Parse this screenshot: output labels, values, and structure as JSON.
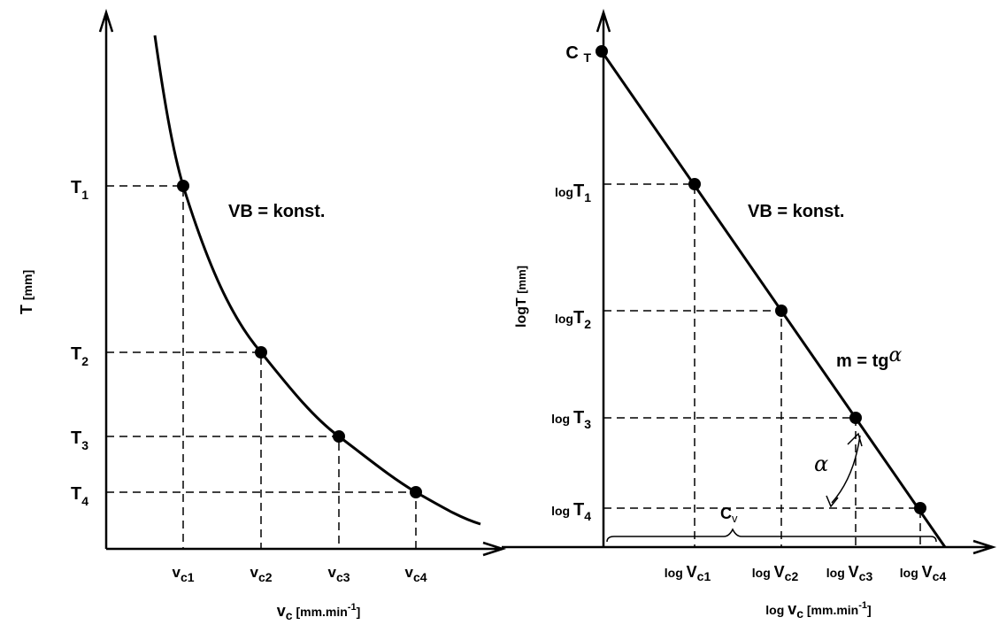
{
  "left": {
    "y_axis_label": {
      "main": "T",
      "unit": "[mm]"
    },
    "t_labels": [
      {
        "main": "T",
        "sub": "1"
      },
      {
        "main": "T",
        "sub": "2"
      },
      {
        "main": "T",
        "sub": "3"
      },
      {
        "main": "T",
        "sub": "4"
      }
    ],
    "v_labels": [
      {
        "main": "v",
        "sub": "c1"
      },
      {
        "main": "v",
        "sub": "c2"
      },
      {
        "main": "v",
        "sub": "c3"
      },
      {
        "main": "v",
        "sub": "c4"
      }
    ],
    "annotation": "VB = konst.",
    "x_axis_label": {
      "main": "v",
      "sub": "c",
      "unit": "[mm.min",
      "exp": "-1",
      "close": "]"
    }
  },
  "right": {
    "intercept_label": {
      "main": "C",
      "sub": "T"
    },
    "t_labels": [
      {
        "pre": "log",
        "main": "T",
        "sub": "1"
      },
      {
        "pre": "log",
        "main": "T",
        "sub": "2"
      },
      {
        "pre": "log",
        "main": "T",
        "sub": "3"
      },
      {
        "pre": "log",
        "main": "T",
        "sub": "4"
      }
    ],
    "v_labels": [
      {
        "pre": "log",
        "main": "V",
        "sub": "c1"
      },
      {
        "pre": "log",
        "main": "V",
        "sub": "c2"
      },
      {
        "pre": "log",
        "main": "V",
        "sub": "c3"
      },
      {
        "pre": "log",
        "main": "V",
        "sub": "c4"
      }
    ],
    "annotation": "VB = konst.",
    "slope_label": {
      "main": "m = tg",
      "greek": "α"
    },
    "angle_label": "α",
    "brace_label": {
      "main": "C",
      "sub": "v"
    },
    "y_axis_label": {
      "main": "logT",
      "unit": "[mm]"
    },
    "x_axis_label": {
      "pre": "log",
      "main": "v",
      "sub": "c",
      "unit": "[mm.min",
      "exp": "-1",
      "close": "]"
    }
  }
}
